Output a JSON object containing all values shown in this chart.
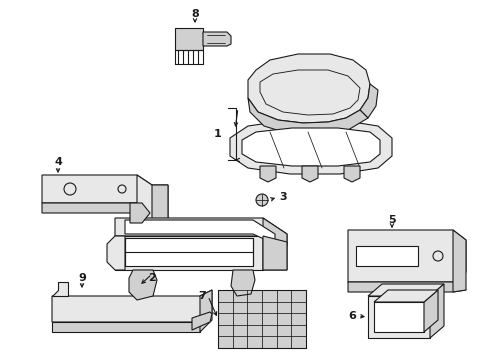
{
  "background_color": "#ffffff",
  "line_color": "#1a1a1a",
  "lw": 0.8,
  "fig_width": 4.89,
  "fig_height": 3.6,
  "dpi": 100
}
